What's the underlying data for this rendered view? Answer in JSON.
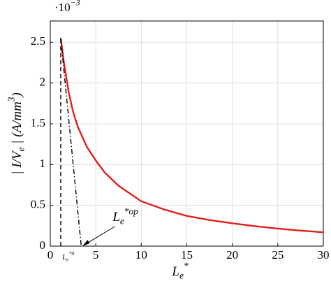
{
  "chart_data": {
    "type": "line",
    "multiplier": {
      "base": "·10",
      "sup": "−3"
    },
    "y_label": {
      "a": "| I/V",
      "sub": "e",
      "b": " | (A/mm",
      "sup": "3",
      "c": ")"
    },
    "x_label": {
      "base": "L",
      "sub": "e",
      "sup": "*"
    },
    "annotations": [
      {
        "base": "L",
        "sub": "e",
        "sup": "*op"
      },
      {
        "base": "L",
        "sub": "e",
        "sup": "*0"
      }
    ],
    "xlim": [
      0,
      30
    ],
    "ylim": [
      0,
      2.76
    ],
    "xticks": [
      0,
      5,
      10,
      15,
      20,
      25,
      30
    ],
    "yticks": [
      0,
      0.5,
      1,
      1.5,
      2,
      2.5
    ],
    "grid": true,
    "series": [
      {
        "color": "#e0201b",
        "dash": "solid",
        "x": [
          1.15,
          1.5,
          2,
          2.5,
          3,
          4,
          5,
          6,
          7.5,
          10,
          12.5,
          15,
          17.5,
          20,
          22.5,
          25,
          27.5,
          30
        ],
        "values": [
          2.55,
          2.25,
          1.9,
          1.65,
          1.47,
          1.22,
          1.05,
          0.9,
          0.74,
          0.55,
          0.45,
          0.37,
          0.32,
          0.28,
          0.245,
          0.215,
          0.19,
          0.17
        ]
      },
      {
        "color": "#000000",
        "dash": "dashed",
        "x": [
          1.15,
          1.15
        ],
        "values": [
          0,
          2.55
        ]
      },
      {
        "color": "#000000",
        "dash": "dashdot",
        "x": [
          1.15,
          3.4
        ],
        "values": [
          2.55,
          0
        ]
      }
    ]
  }
}
